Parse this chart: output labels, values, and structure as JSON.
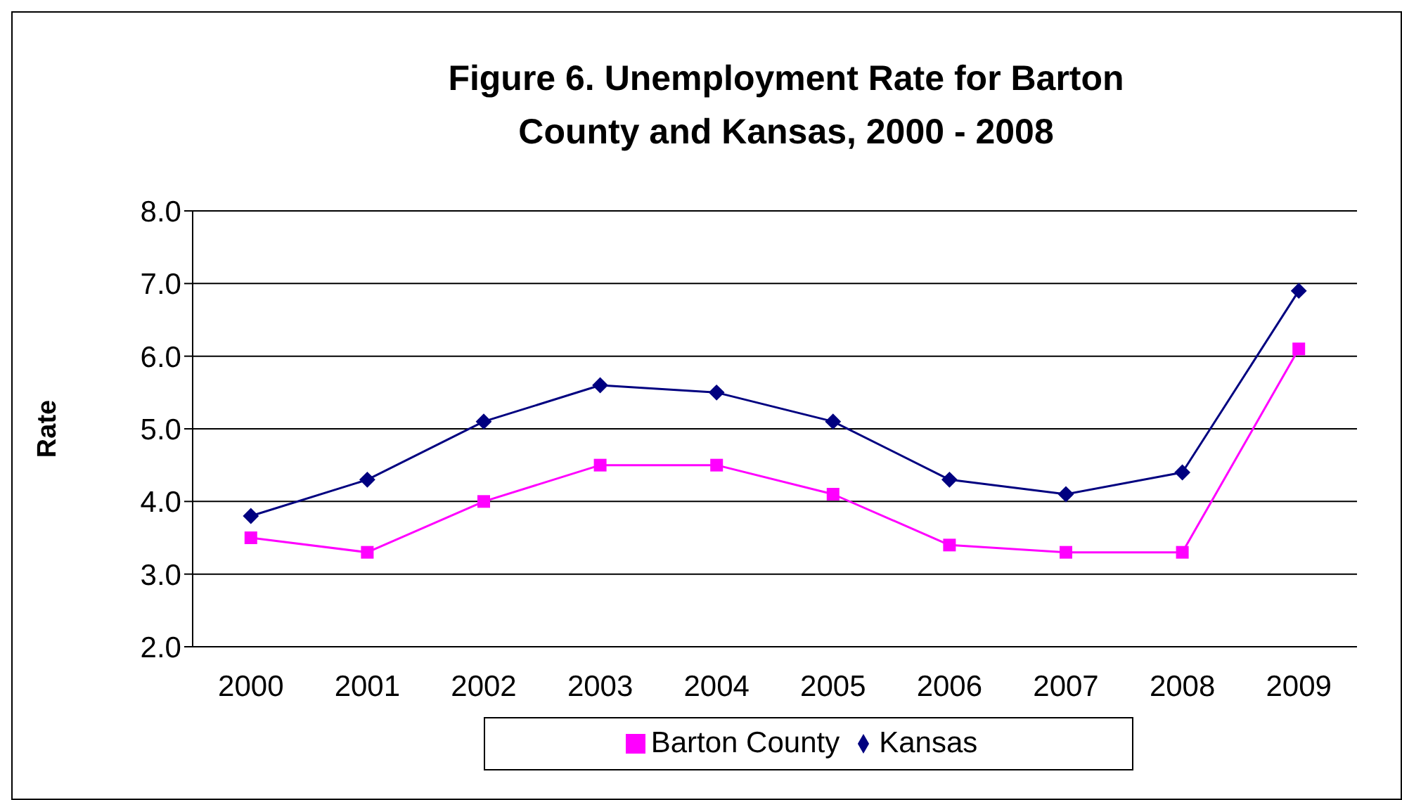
{
  "chart_data": {
    "type": "line",
    "title": "Figure 6. Unemployment Rate for Barton County and Kansas, 2000 - 2008",
    "ylabel": "Rate",
    "categories": [
      "2000",
      "2001",
      "2002",
      "2003",
      "2004",
      "2005",
      "2006",
      "2007",
      "2008",
      "2009"
    ],
    "series": [
      {
        "name": "Kansas",
        "color": "#000080",
        "marker": "diamond",
        "values": [
          3.8,
          4.3,
          5.1,
          5.6,
          5.5,
          5.1,
          4.3,
          4.1,
          4.4,
          6.9
        ]
      },
      {
        "name": "Barton County",
        "color": "#ff00ff",
        "marker": "square",
        "values": [
          3.5,
          3.3,
          4.0,
          4.5,
          4.5,
          4.1,
          3.4,
          3.3,
          3.3,
          6.1
        ]
      }
    ],
    "ylim": [
      2,
      8
    ],
    "yticks": [
      {
        "value": 2,
        "label": "2.0"
      },
      {
        "value": 3,
        "label": "3.0"
      },
      {
        "value": 4,
        "label": "4.0"
      },
      {
        "value": 5,
        "label": "5.0"
      },
      {
        "value": 6,
        "label": "6.0"
      },
      {
        "value": 7,
        "label": "7.0"
      },
      {
        "value": 8,
        "label": "8.0"
      }
    ],
    "grid": "y",
    "legend": "bottom"
  }
}
